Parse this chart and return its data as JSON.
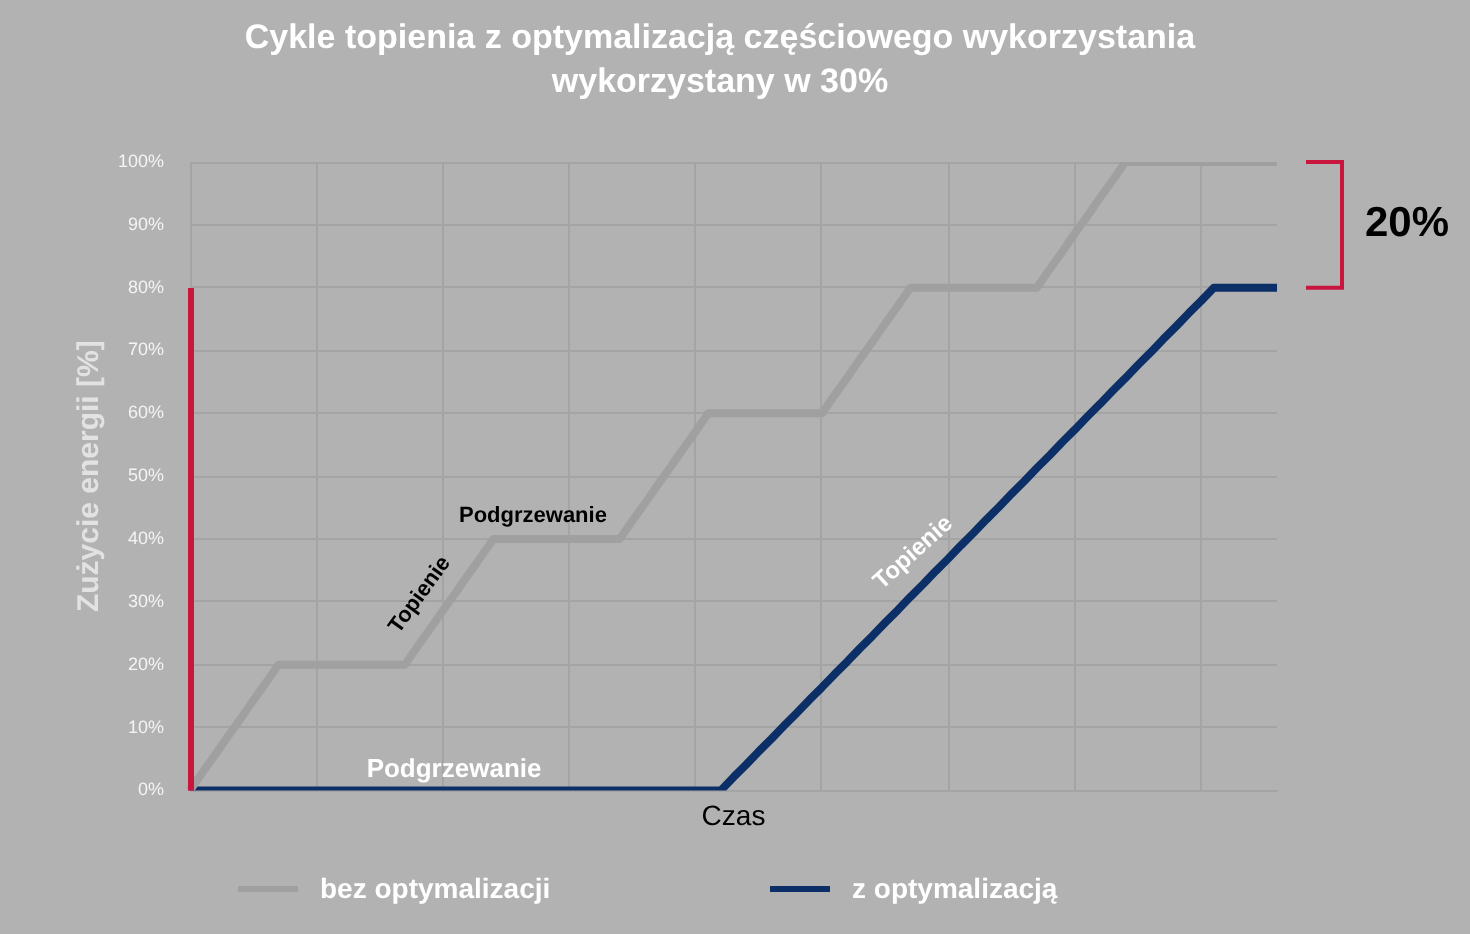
{
  "chart_data": {
    "type": "line",
    "title": "Cykle topienia z optymalizacją częściowego wykorzystania wykorzystany w 30%",
    "xlabel": "Czas",
    "ylabel": "Zużycie energii [%]",
    "categories": [
      null,
      null,
      null,
      null,
      null,
      null,
      null,
      null,
      null,
      null,
      null,
      null,
      null,
      null,
      null,
      null,
      null,
      null,
      null,
      null,
      null,
      null,
      null,
      null,
      null,
      null,
      null,
      null,
      null,
      null,
      null,
      null,
      null,
      null,
      null,
      null,
      null,
      null,
      null,
      null,
      null,
      null,
      null,
      null,
      null,
      null,
      null,
      null,
      null,
      null,
      null,
      null,
      null,
      null,
      null,
      null,
      null,
      null,
      null,
      null,
      null,
      null,
      null,
      null,
      null,
      null,
      null,
      null,
      null,
      null,
      null,
      null,
      null,
      null,
      null,
      null,
      null,
      null,
      null,
      null,
      null,
      null,
      null,
      null,
      null,
      null,
      null
    ],
    "ylim": [
      0,
      100
    ],
    "yticks": [
      {
        "value": 0,
        "label": "0%"
      },
      {
        "value": 10,
        "label": "10%"
      },
      {
        "value": 20,
        "label": "20%"
      },
      {
        "value": 30,
        "label": "30%"
      },
      {
        "value": 40,
        "label": "40%"
      },
      {
        "value": 50,
        "label": "50%"
      },
      {
        "value": 60,
        "label": "60%"
      },
      {
        "value": 70,
        "label": "70%"
      },
      {
        "value": 80,
        "label": "80%"
      },
      {
        "value": 90,
        "label": "90%"
      },
      {
        "value": 100,
        "label": "100%"
      }
    ],
    "series": [
      {
        "name": "bez optymalizacji",
        "color": "#a0a0a0",
        "values": [
          0,
          2.9,
          5.7,
          8.6,
          11.4,
          14.3,
          17.1,
          20,
          20,
          20,
          20,
          20,
          20,
          20,
          20,
          20,
          20,
          20,
          22.9,
          25.7,
          28.6,
          31.4,
          34.3,
          37.1,
          40,
          40,
          40,
          40,
          40,
          40,
          40,
          40,
          40,
          40,
          40,
          42.9,
          45.7,
          48.6,
          51.4,
          54.3,
          57.1,
          60,
          60,
          60,
          60,
          60,
          60,
          60,
          60,
          60,
          60,
          62.9,
          65.7,
          68.6,
          71.4,
          74.3,
          77.1,
          80,
          80,
          80,
          80,
          80,
          80,
          80,
          80,
          80,
          80,
          80,
          82.9,
          85.7,
          88.6,
          91.4,
          94.3,
          97.1,
          100,
          100,
          100,
          100,
          100,
          100,
          100,
          100,
          100,
          100,
          100,
          100,
          100
        ]
      },
      {
        "name": "z optymalizacją",
        "color": "#0b2f66",
        "values": [
          0,
          0,
          0,
          0,
          0,
          0,
          0,
          0,
          0,
          0,
          0,
          0,
          0,
          0,
          0,
          0,
          0,
          0,
          0,
          0,
          0,
          0,
          0,
          0,
          0,
          0,
          0,
          0,
          0,
          0,
          0,
          0,
          0,
          0,
          0,
          0,
          0,
          0,
          0,
          0,
          0,
          0,
          0,
          2.1,
          4.1,
          6.2,
          8.2,
          10.3,
          12.3,
          14.4,
          16.4,
          18.5,
          20.5,
          22.6,
          24.6,
          26.7,
          28.7,
          30.8,
          32.8,
          34.9,
          36.9,
          39,
          41,
          43.1,
          45.1,
          47.2,
          49.2,
          51.3,
          53.3,
          55.4,
          57.4,
          59.5,
          61.5,
          63.6,
          65.6,
          67.7,
          69.7,
          71.8,
          73.8,
          75.9,
          77.9,
          80,
          80,
          80,
          80,
          80,
          80
        ]
      }
    ],
    "annotations": [
      "Topienie",
      "Podgrzewanie",
      "Podgrzewanie",
      "Topienie",
      "20%"
    ],
    "grid": true,
    "legend": "bottom",
    "marker": "none",
    "tick_labels": "y"
  }
}
